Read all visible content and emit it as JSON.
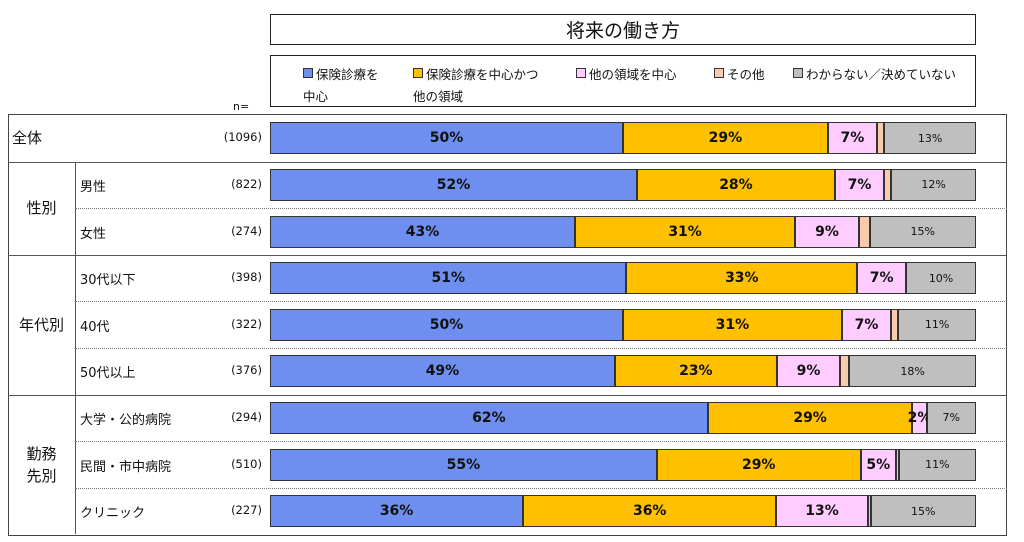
{
  "chart_data": {
    "type": "bar",
    "orientation": "horizontal",
    "stacked": true,
    "title": "将来の働き方",
    "n_header": "n=",
    "series": [
      {
        "name": "保険診療を中心",
        "name_lines": [
          "保険診療を",
          "中心"
        ],
        "color": "#6e8ff0"
      },
      {
        "name": "保険診療を中心かつ他の領域",
        "name_lines": [
          "保険診療を中心かつ",
          "他の領域"
        ],
        "color": "#ffc000"
      },
      {
        "name": "他の領域を中心",
        "name_lines": [
          "他の領域を中心"
        ],
        "color": "#ffccff"
      },
      {
        "name": "その他",
        "name_lines": [
          "その他"
        ],
        "color": "#f8cbad"
      },
      {
        "name": "わからない／決めていない",
        "name_lines": [
          "わからない／決めていない"
        ],
        "color": "#bfbfbf"
      }
    ],
    "groups": [
      {
        "label": "全体",
        "rows": [
          {
            "label": "",
            "n": "(1096)",
            "values": [
              50,
              29,
              7,
              1,
              13
            ],
            "labels": [
              "50%",
              "29%",
              "7%",
              "",
              "13%"
            ]
          }
        ]
      },
      {
        "label": "性別",
        "rows": [
          {
            "label": "男性",
            "n": "(822)",
            "values": [
              52,
              28,
              7,
              1,
              12
            ],
            "labels": [
              "52%",
              "28%",
              "7%",
              "",
              "12%"
            ]
          },
          {
            "label": "女性",
            "n": "(274)",
            "values": [
              43,
              31,
              9,
              1.5,
              15
            ],
            "labels": [
              "43%",
              "31%",
              "9%",
              "",
              "15%"
            ]
          }
        ]
      },
      {
        "label": "年代別",
        "rows": [
          {
            "label": "30代以下",
            "n": "(398)",
            "values": [
              51,
              33,
              7,
              0,
              10
            ],
            "labels": [
              "51%",
              "33%",
              "7%",
              "",
              "10%"
            ]
          },
          {
            "label": "40代",
            "n": "(322)",
            "values": [
              50,
              31,
              7,
              1,
              11
            ],
            "labels": [
              "50%",
              "31%",
              "7%",
              "",
              "11%"
            ]
          },
          {
            "label": "50代以上",
            "n": "(376)",
            "values": [
              49,
              23,
              9,
              1.3,
              18
            ],
            "labels": [
              "49%",
              "23%",
              "9%",
              "",
              "18%"
            ]
          }
        ]
      },
      {
        "label": "勤務先別",
        "rows": [
          {
            "label": "大学・公的病院",
            "n": "(294)",
            "values": [
              62,
              29,
              2,
              0,
              7
            ],
            "labels": [
              "62%",
              "29%",
              "2%",
              "",
              "7%"
            ]
          },
          {
            "label": "民間・市中病院",
            "n": "(510)",
            "values": [
              55,
              29,
              5,
              0.4,
              11
            ],
            "labels": [
              "55%",
              "29%",
              "5%",
              "",
              "11%"
            ]
          },
          {
            "label": "クリニック",
            "n": "(227)",
            "values": [
              36,
              36,
              13,
              0.4,
              15
            ],
            "labels": [
              "36%",
              "36%",
              "13%",
              "",
              "15%"
            ]
          }
        ]
      }
    ]
  }
}
